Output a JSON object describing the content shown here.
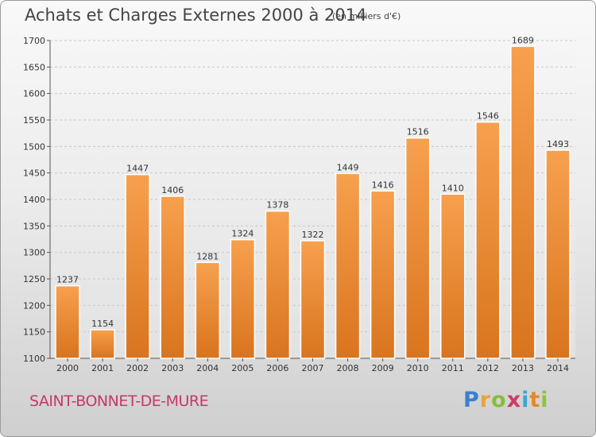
{
  "title": "Achats et Charges Externes 2000 à 2014",
  "subtitle": "(en milliers d'€)",
  "commune": "SAINT-BONNET-DE-MURE",
  "logo": {
    "text": "Proxiti"
  },
  "colors": {
    "bar_light": "#f7a04e",
    "bar_dark": "#d9741e",
    "commune": "#c33a66"
  },
  "chart_data": {
    "type": "bar",
    "title": "Achats et Charges Externes 2000 à 2014",
    "subtitle": "(en milliers d'€)",
    "categories": [
      "2000",
      "2001",
      "2002",
      "2003",
      "2004",
      "2005",
      "2006",
      "2007",
      "2008",
      "2009",
      "2010",
      "2011",
      "2012",
      "2013",
      "2014"
    ],
    "values": [
      1237,
      1154,
      1447,
      1406,
      1281,
      1324,
      1378,
      1322,
      1449,
      1416,
      1516,
      1410,
      1546,
      1689,
      1493
    ],
    "ylim": [
      1100,
      1700
    ],
    "yticks": [
      1100,
      1150,
      1200,
      1250,
      1300,
      1350,
      1400,
      1450,
      1500,
      1550,
      1600,
      1650,
      1700
    ],
    "grid": true,
    "xlabel": "",
    "ylabel": ""
  }
}
